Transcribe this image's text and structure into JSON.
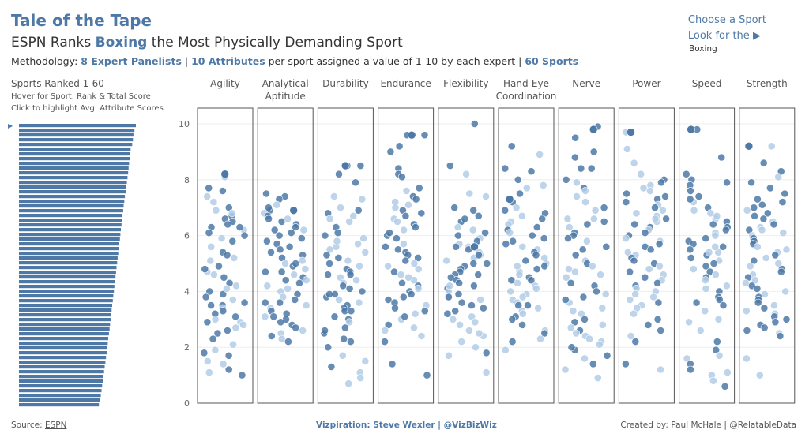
{
  "header": {
    "title": "Tale of the Tape",
    "subtitle_pre": "ESPN Ranks ",
    "subtitle_sport": "Boxing",
    "subtitle_post": " the Most Physically Demanding Sport",
    "method_pre": "Methodology: ",
    "method_panel": "8 Expert Panelists",
    "method_sep1": " | ",
    "method_attr": "10 Attributes",
    "method_mid": " per sport assigned a value of 1-10 by each expert | ",
    "method_sports": "60 Sports"
  },
  "selector": {
    "line1": "Choose a Sport",
    "line2": "Look for the",
    "arrow": "▶",
    "value": "Boxing"
  },
  "ranking": {
    "title": "Sports Ranked 1-60",
    "hint1": "Hover for Sport, Rank & Total Score",
    "hint2": "Click to highlight Avg. Attribute Scores",
    "marker": "▶"
  },
  "footer": {
    "source_label": "Source: ",
    "source_link": "ESPN",
    "credit": "Vizpiration: Steve Wexler | @VizBizWiz",
    "created": "Created by: Paul McHale | @RelatableData"
  },
  "colors": {
    "accent": "#4e79a7",
    "dot_dark": "#4e79a7",
    "dot_light": "#b3cde6",
    "bar": "#4e79a7"
  },
  "chart_data": [
    {
      "type": "bar",
      "orientation": "horizontal",
      "categories_count": 60,
      "values": [
        72.4,
        71.5,
        70.9,
        70.6,
        70.1,
        69.1,
        68.9,
        68.6,
        68.2,
        67.9,
        67.6,
        67.2,
        66.8,
        66.4,
        66.1,
        65.6,
        65.2,
        64.8,
        64.5,
        64.1,
        63.8,
        63.5,
        63.1,
        62.8,
        62.5,
        62.1,
        61.8,
        61.5,
        61.1,
        60.8,
        60.4,
        60.1,
        59.8,
        59.4,
        59.1,
        58.8,
        58.4,
        58.1,
        57.7,
        57.4,
        57.1,
        56.8,
        56.4,
        56.1,
        55.7,
        55.3,
        55.0,
        54.6,
        54.3,
        53.9,
        53.5,
        53.1,
        52.7,
        52.3,
        51.9,
        51.5,
        51.1,
        50.7,
        50.1,
        49.5
      ]
    },
    {
      "type": "scatter",
      "y_ticks": [
        "0",
        "2",
        "4",
        "6",
        "8",
        "10"
      ],
      "ylim": [
        0,
        10.5
      ],
      "attributes": [
        "Agility",
        "Analytical\nAptitude",
        "Durability",
        "Endurance",
        "Flexibility",
        "Hand-Eye\nCoordination",
        "Nerve",
        "Power",
        "Speed",
        "Strength"
      ],
      "highlight": [
        8.2,
        6.9,
        8.5,
        9.6,
        5.6,
        7.3,
        9.8,
        9.7,
        9.8,
        9.2
      ],
      "series": [
        {
          "values": [
            8.1,
            7.7,
            7.6,
            7.4,
            7.0,
            6.9,
            6.7,
            6.6,
            6.5,
            6.4,
            6.3,
            6.2,
            6.1,
            6.0,
            5.9,
            5.8,
            5.6,
            5.4,
            5.3,
            5.1,
            4.9,
            4.7,
            4.6,
            4.5,
            4.3,
            4.2,
            4.0,
            3.9,
            3.8,
            3.7,
            3.6,
            3.5,
            3.4,
            3.3,
            3.2,
            3.1,
            3.0,
            2.9,
            2.8,
            2.7,
            2.6,
            2.5,
            2.3,
            2.1,
            1.9,
            1.8,
            1.7,
            1.5,
            1.4,
            1.2,
            1.1,
            1.0,
            4.8,
            5.2,
            6.8,
            7.2,
            3.5,
            2.9,
            4.1,
            6.3
          ]
        },
        {
          "values": [
            7.5,
            7.4,
            7.3,
            7.1,
            6.9,
            6.8,
            6.7,
            6.6,
            6.5,
            6.4,
            6.3,
            6.2,
            6.1,
            6.0,
            5.9,
            5.8,
            5.7,
            5.6,
            5.5,
            5.3,
            5.2,
            5.1,
            5.0,
            4.9,
            4.8,
            4.7,
            4.6,
            4.5,
            4.4,
            4.3,
            4.2,
            4.1,
            4.0,
            3.9,
            3.8,
            3.7,
            3.6,
            3.5,
            3.4,
            3.3,
            3.2,
            3.1,
            3.0,
            2.9,
            2.8,
            2.7,
            2.6,
            2.5,
            2.4,
            2.3,
            2.2,
            5.4,
            6.2,
            4.4,
            3.6,
            5.0,
            6.6,
            7.0,
            3.1,
            4.7
          ]
        },
        {
          "values": [
            8.5,
            8.5,
            8.2,
            7.9,
            7.4,
            7.3,
            7.0,
            6.9,
            6.8,
            6.6,
            6.5,
            6.3,
            6.1,
            5.9,
            5.7,
            5.6,
            5.5,
            5.4,
            5.2,
            5.1,
            5.0,
            4.9,
            4.8,
            4.7,
            4.6,
            4.5,
            4.4,
            4.3,
            4.2,
            4.0,
            3.9,
            3.8,
            3.7,
            3.6,
            3.5,
            3.4,
            3.3,
            3.1,
            3.0,
            2.9,
            2.7,
            2.5,
            2.3,
            2.2,
            2.0,
            1.7,
            1.5,
            1.3,
            1.1,
            0.9,
            0.7,
            6.0,
            4.6,
            3.3,
            5.8,
            4.1,
            6.7,
            2.6,
            3.9,
            5.3
          ]
        },
        {
          "values": [
            9.6,
            9.6,
            9.2,
            9.0,
            8.4,
            8.2,
            8.1,
            7.7,
            7.6,
            7.4,
            7.3,
            7.2,
            7.0,
            6.9,
            6.8,
            6.7,
            6.6,
            6.4,
            6.3,
            6.2,
            6.0,
            5.9,
            5.7,
            5.5,
            5.4,
            5.3,
            5.2,
            5.0,
            4.9,
            4.8,
            4.7,
            4.6,
            4.4,
            4.3,
            4.2,
            4.1,
            4.0,
            3.9,
            3.8,
            3.7,
            3.6,
            3.5,
            3.4,
            3.3,
            3.2,
            3.0,
            2.8,
            2.6,
            2.4,
            2.2,
            1.4,
            1.0,
            5.6,
            4.5,
            6.1,
            3.1,
            5.1,
            7.1,
            2.7,
            6.5
          ]
        },
        {
          "values": [
            10.0,
            8.5,
            8.2,
            7.5,
            7.4,
            7.0,
            6.9,
            6.7,
            6.5,
            6.3,
            6.1,
            6.0,
            5.9,
            5.8,
            5.7,
            5.6,
            5.5,
            5.4,
            5.3,
            5.2,
            5.1,
            5.0,
            4.9,
            4.8,
            4.7,
            4.6,
            4.5,
            4.4,
            4.3,
            4.2,
            4.1,
            4.0,
            3.9,
            3.8,
            3.7,
            3.6,
            3.5,
            3.4,
            3.3,
            3.2,
            3.1,
            3.0,
            2.9,
            2.8,
            2.6,
            2.4,
            2.2,
            2.0,
            1.8,
            1.7,
            1.1,
            5.6,
            4.6,
            6.2,
            3.8,
            5.3,
            4.2,
            2.5,
            6.6,
            5.0
          ]
        },
        {
          "values": [
            9.2,
            8.9,
            8.4,
            8.3,
            8.0,
            7.8,
            7.7,
            7.5,
            7.3,
            7.2,
            7.0,
            6.9,
            6.8,
            6.7,
            6.6,
            6.5,
            6.4,
            6.2,
            6.1,
            6.0,
            5.9,
            5.8,
            5.6,
            5.5,
            5.4,
            5.3,
            5.2,
            5.0,
            4.9,
            4.8,
            4.7,
            4.6,
            4.5,
            4.4,
            4.3,
            4.2,
            4.1,
            4.0,
            3.9,
            3.8,
            3.7,
            3.6,
            3.5,
            3.4,
            3.3,
            3.2,
            3.1,
            3.0,
            2.8,
            2.6,
            2.5,
            2.3,
            2.2,
            1.9,
            5.7,
            4.9,
            6.3,
            3.5,
            4.4,
            5.1
          ]
        },
        {
          "values": [
            9.9,
            9.5,
            9.0,
            8.8,
            8.4,
            8.4,
            8.0,
            7.9,
            7.7,
            7.6,
            7.4,
            7.2,
            7.0,
            6.9,
            6.6,
            6.6,
            6.5,
            6.4,
            6.3,
            6.1,
            6.0,
            5.8,
            5.6,
            5.5,
            5.3,
            5.1,
            5.0,
            4.9,
            4.8,
            4.6,
            4.5,
            4.3,
            4.2,
            4.0,
            3.9,
            3.8,
            3.6,
            3.4,
            3.2,
            3.0,
            2.9,
            2.8,
            2.7,
            2.6,
            2.5,
            2.4,
            2.3,
            2.2,
            2.1,
            1.9,
            1.7,
            1.6,
            1.4,
            1.2,
            0.9,
            3.3,
            4.7,
            5.9,
            2.0,
            3.7
          ]
        },
        {
          "values": [
            9.7,
            9.1,
            8.6,
            8.2,
            8.0,
            7.9,
            7.8,
            7.7,
            7.6,
            7.5,
            7.4,
            7.3,
            7.2,
            7.1,
            7.0,
            6.9,
            6.8,
            6.7,
            6.6,
            6.5,
            6.4,
            6.3,
            6.2,
            6.1,
            6.0,
            5.9,
            5.8,
            5.7,
            5.6,
            5.5,
            5.4,
            5.3,
            5.2,
            5.1,
            5.0,
            4.9,
            4.8,
            4.7,
            4.6,
            4.5,
            4.4,
            4.3,
            4.2,
            4.1,
            4.0,
            3.9,
            3.8,
            3.7,
            3.6,
            3.5,
            3.4,
            3.2,
            3.0,
            2.8,
            2.6,
            2.4,
            2.2,
            1.4,
            1.2,
            6.6
          ]
        },
        {
          "values": [
            9.8,
            8.8,
            8.2,
            8.0,
            7.9,
            7.8,
            7.6,
            7.4,
            7.2,
            7.0,
            6.9,
            6.8,
            6.6,
            6.5,
            6.4,
            6.3,
            6.2,
            6.1,
            6.0,
            5.9,
            5.8,
            5.7,
            5.6,
            5.5,
            5.4,
            5.3,
            5.2,
            5.1,
            5.0,
            4.9,
            4.7,
            4.6,
            4.5,
            4.4,
            4.2,
            4.1,
            4.0,
            3.8,
            3.7,
            3.5,
            3.3,
            3.0,
            2.9,
            2.6,
            2.2,
            1.9,
            1.7,
            1.6,
            1.4,
            1.2,
            1.1,
            1.0,
            0.8,
            0.6,
            5.4,
            6.7,
            4.8,
            3.6,
            5.6,
            7.3
          ]
        },
        {
          "values": [
            9.2,
            8.6,
            8.3,
            8.1,
            7.9,
            7.7,
            7.5,
            7.3,
            7.2,
            7.1,
            7.0,
            6.9,
            6.8,
            6.7,
            6.6,
            6.5,
            6.4,
            6.3,
            6.2,
            6.1,
            6.0,
            5.9,
            5.8,
            5.7,
            5.6,
            5.5,
            5.4,
            5.3,
            5.2,
            5.1,
            5.0,
            4.9,
            4.8,
            4.7,
            4.6,
            4.5,
            4.4,
            4.3,
            4.2,
            4.1,
            4.0,
            3.9,
            3.8,
            3.7,
            3.6,
            3.5,
            3.4,
            3.3,
            3.2,
            3.1,
            3.0,
            2.9,
            2.8,
            2.7,
            2.6,
            2.5,
            2.4,
            1.6,
            1.0,
            6.2
          ]
        }
      ]
    }
  ]
}
